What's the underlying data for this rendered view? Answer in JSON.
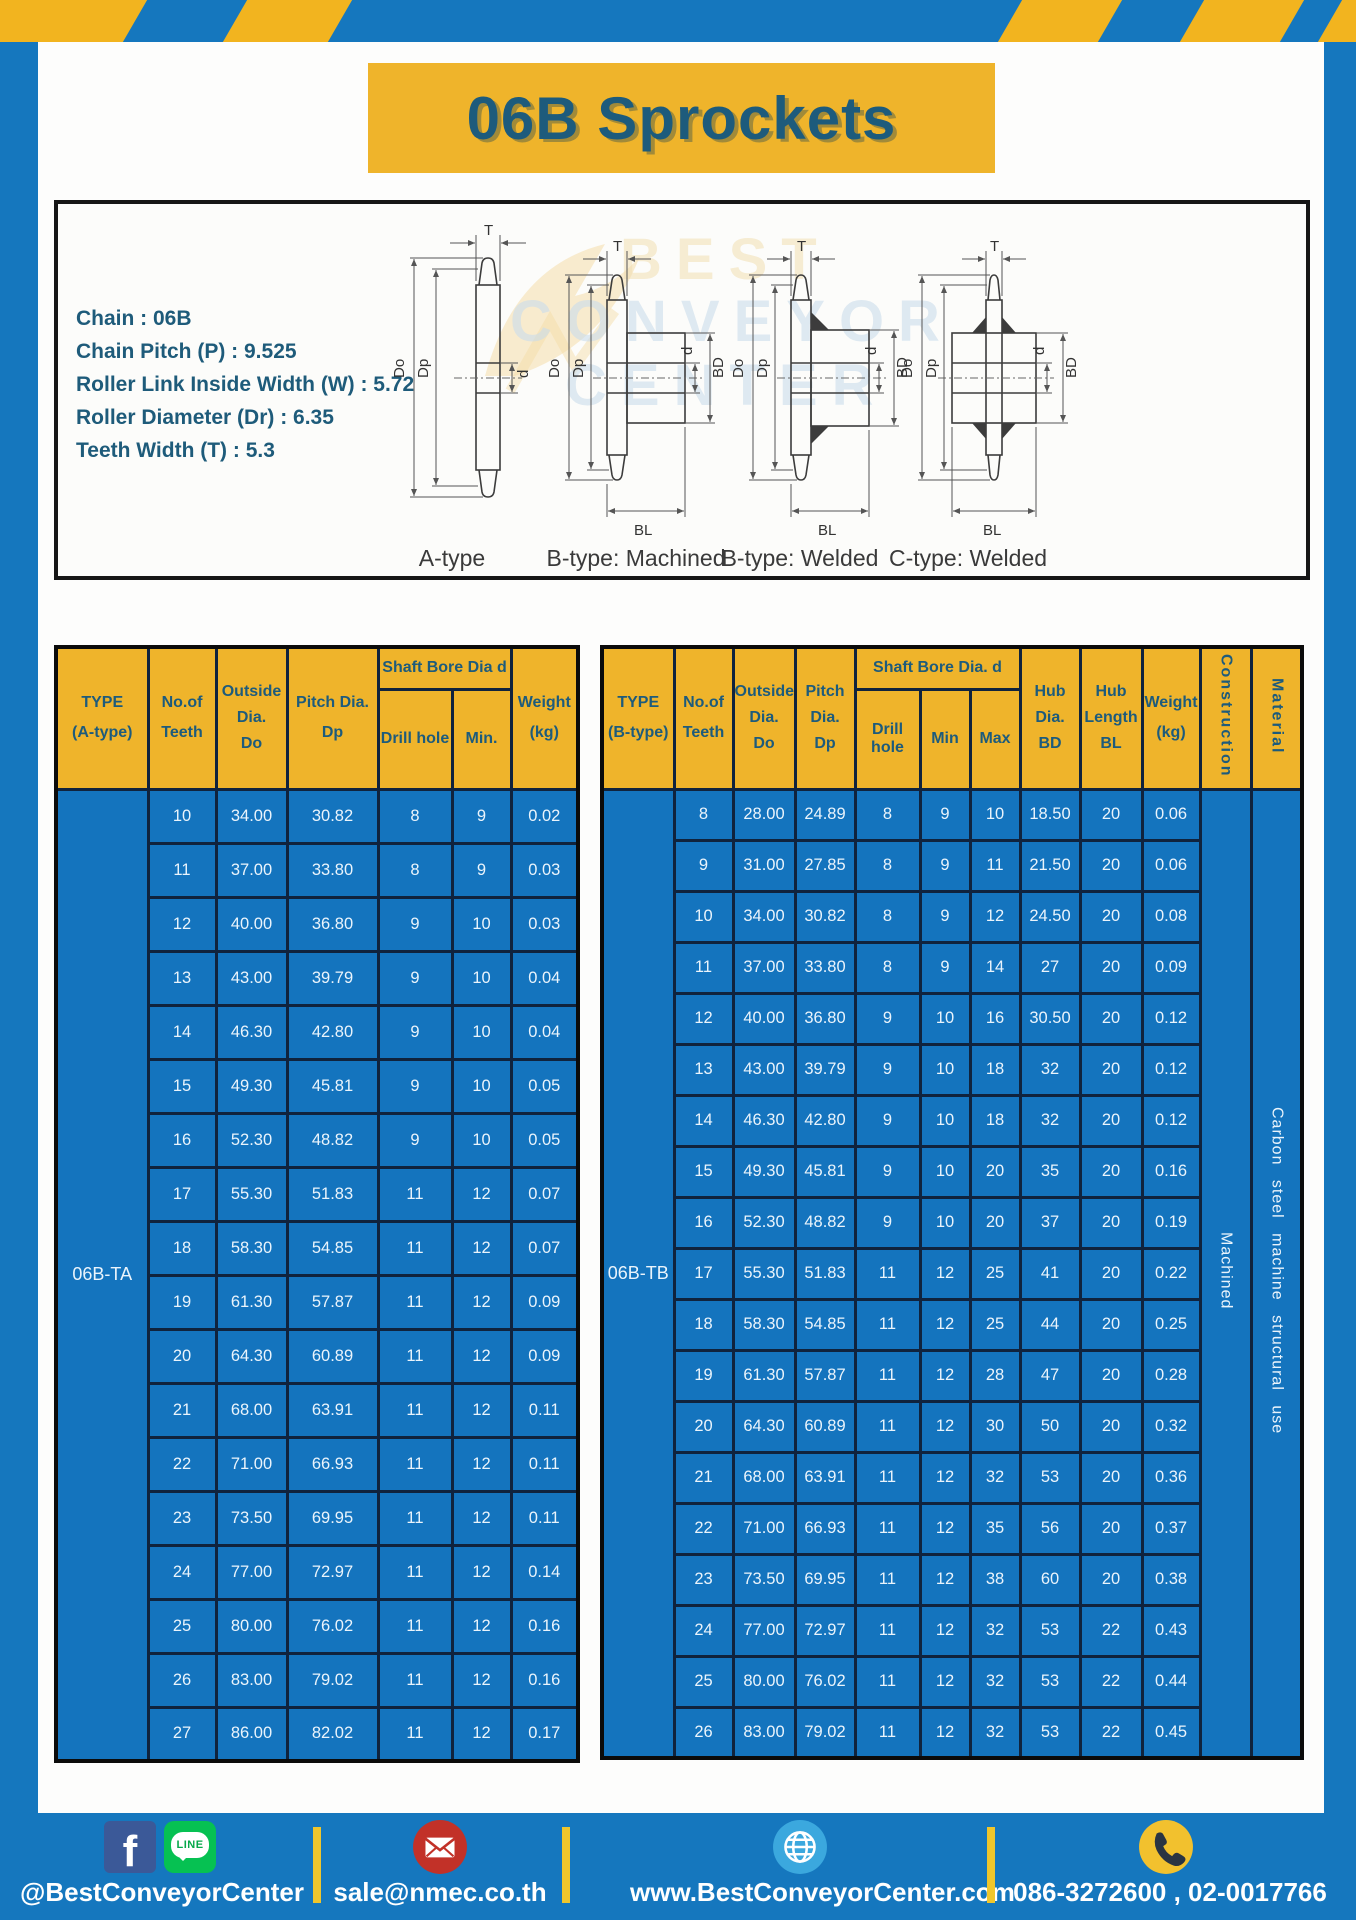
{
  "title": "06B Sprockets",
  "specs": [
    "Chain : 06B",
    "Chain Pitch (P) : 9.525",
    "Roller Link Inside Width (W) : 5.72",
    "Roller Diameter (Dr) : 6.35",
    "Teeth Width (T) : 5.3"
  ],
  "diagram": {
    "labels": [
      "A-type",
      "B-type: Machined",
      "B-type: Welded",
      "C-type: Welded"
    ],
    "dims": {
      "T": "T",
      "Do": "Do",
      "Dp": "Dp",
      "d": "d",
      "BD": "BD",
      "BL": "BL"
    },
    "watermark": [
      "BEST",
      "CONVEYOR",
      "CENTER"
    ]
  },
  "table_a": {
    "headers": {
      "type": [
        "TYPE",
        "(A-type)"
      ],
      "teeth": [
        "No.of",
        "Teeth"
      ],
      "outside": [
        "Outside",
        "Dia.",
        "Do"
      ],
      "pitch": [
        "Pitch Dia.",
        "Dp"
      ],
      "shaft_bore": "Shaft Bore Dia d",
      "drill": "Drill hole",
      "min": "Min.",
      "weight": [
        "Weight",
        "(kg)"
      ]
    },
    "type_value": "06B-TA",
    "rows": [
      [
        "10",
        "34.00",
        "30.82",
        "8",
        "9",
        "0.02"
      ],
      [
        "11",
        "37.00",
        "33.80",
        "8",
        "9",
        "0.03"
      ],
      [
        "12",
        "40.00",
        "36.80",
        "9",
        "10",
        "0.03"
      ],
      [
        "13",
        "43.00",
        "39.79",
        "9",
        "10",
        "0.04"
      ],
      [
        "14",
        "46.30",
        "42.80",
        "9",
        "10",
        "0.04"
      ],
      [
        "15",
        "49.30",
        "45.81",
        "9",
        "10",
        "0.05"
      ],
      [
        "16",
        "52.30",
        "48.82",
        "9",
        "10",
        "0.05"
      ],
      [
        "17",
        "55.30",
        "51.83",
        "11",
        "12",
        "0.07"
      ],
      [
        "18",
        "58.30",
        "54.85",
        "11",
        "12",
        "0.07"
      ],
      [
        "19",
        "61.30",
        "57.87",
        "11",
        "12",
        "0.09"
      ],
      [
        "20",
        "64.30",
        "60.89",
        "11",
        "12",
        "0.09"
      ],
      [
        "21",
        "68.00",
        "63.91",
        "11",
        "12",
        "0.11"
      ],
      [
        "22",
        "71.00",
        "66.93",
        "11",
        "12",
        "0.11"
      ],
      [
        "23",
        "73.50",
        "69.95",
        "11",
        "12",
        "0.11"
      ],
      [
        "24",
        "77.00",
        "72.97",
        "11",
        "12",
        "0.14"
      ],
      [
        "25",
        "80.00",
        "76.02",
        "11",
        "12",
        "0.16"
      ],
      [
        "26",
        "83.00",
        "79.02",
        "11",
        "12",
        "0.16"
      ],
      [
        "27",
        "86.00",
        "82.02",
        "11",
        "12",
        "0.17"
      ]
    ]
  },
  "table_b": {
    "headers": {
      "type": [
        "TYPE",
        "(B-type)"
      ],
      "teeth": [
        "No.of",
        "Teeth"
      ],
      "outside": [
        "Outside",
        "Dia.",
        "Do"
      ],
      "pitch": [
        "Pitch",
        "Dia.",
        "Dp"
      ],
      "shaft_bore": "Shaft Bore Dia. d",
      "drill": "Drill hole",
      "min": "Min",
      "max": "Max",
      "hub_dia": [
        "Hub",
        "Dia.",
        "BD"
      ],
      "hub_len": [
        "Hub",
        "Length",
        "BL"
      ],
      "weight": [
        "Weight",
        "(kg)"
      ],
      "construction": "Construction",
      "material": "Material"
    },
    "type_value": "06B-TB",
    "construction_value": "Machined",
    "material_value": "Carbon steel machine structural use",
    "rows": [
      [
        "8",
        "28.00",
        "24.89",
        "8",
        "9",
        "10",
        "18.50",
        "20",
        "0.06"
      ],
      [
        "9",
        "31.00",
        "27.85",
        "8",
        "9",
        "11",
        "21.50",
        "20",
        "0.06"
      ],
      [
        "10",
        "34.00",
        "30.82",
        "8",
        "9",
        "12",
        "24.50",
        "20",
        "0.08"
      ],
      [
        "11",
        "37.00",
        "33.80",
        "8",
        "9",
        "14",
        "27",
        "20",
        "0.09"
      ],
      [
        "12",
        "40.00",
        "36.80",
        "9",
        "10",
        "16",
        "30.50",
        "20",
        "0.12"
      ],
      [
        "13",
        "43.00",
        "39.79",
        "9",
        "10",
        "18",
        "32",
        "20",
        "0.12"
      ],
      [
        "14",
        "46.30",
        "42.80",
        "9",
        "10",
        "18",
        "32",
        "20",
        "0.12"
      ],
      [
        "15",
        "49.30",
        "45.81",
        "9",
        "10",
        "20",
        "35",
        "20",
        "0.16"
      ],
      [
        "16",
        "52.30",
        "48.82",
        "9",
        "10",
        "20",
        "37",
        "20",
        "0.19"
      ],
      [
        "17",
        "55.30",
        "51.83",
        "11",
        "12",
        "25",
        "41",
        "20",
        "0.22"
      ],
      [
        "18",
        "58.30",
        "54.85",
        "11",
        "12",
        "25",
        "44",
        "20",
        "0.25"
      ],
      [
        "19",
        "61.30",
        "57.87",
        "11",
        "12",
        "28",
        "47",
        "20",
        "0.28"
      ],
      [
        "20",
        "64.30",
        "60.89",
        "11",
        "12",
        "30",
        "50",
        "20",
        "0.32"
      ],
      [
        "21",
        "68.00",
        "63.91",
        "11",
        "12",
        "32",
        "53",
        "20",
        "0.36"
      ],
      [
        "22",
        "71.00",
        "66.93",
        "11",
        "12",
        "35",
        "56",
        "20",
        "0.37"
      ],
      [
        "23",
        "73.50",
        "69.95",
        "11",
        "12",
        "38",
        "60",
        "20",
        "0.38"
      ],
      [
        "24",
        "77.00",
        "72.97",
        "11",
        "12",
        "32",
        "53",
        "22",
        "0.43"
      ],
      [
        "25",
        "80.00",
        "76.02",
        "11",
        "12",
        "32",
        "53",
        "22",
        "0.44"
      ],
      [
        "26",
        "83.00",
        "79.02",
        "11",
        "12",
        "32",
        "53",
        "22",
        "0.45"
      ]
    ]
  },
  "footer": {
    "fb_letter": "f",
    "line_text": "LINE",
    "social_label": "@BestConveyorCenter",
    "email": "sale@nmec.co.th",
    "website": "www.BestConveyorCenter.com",
    "phones": "086-3272600 , 02-0017766"
  }
}
